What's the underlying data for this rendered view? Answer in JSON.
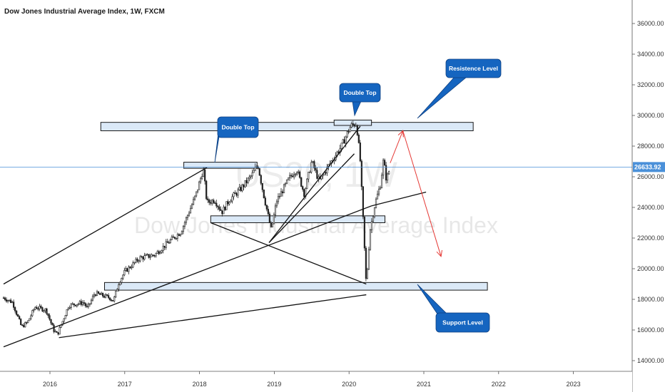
{
  "header": {
    "title": "Dow Jones Industrial Average Index, 1W, FXCM"
  },
  "watermark": {
    "symbol": "US30, 1W",
    "name": "Dow Jones Industrial Average Index"
  },
  "current_price": {
    "label": "26633.92",
    "value": 26633.92
  },
  "colors": {
    "axis_bg": "#ffffff",
    "price_line": "#4a90d9",
    "zone_fill": "#dbe9f7",
    "callout": "#1565c0",
    "projection": "#e53935"
  },
  "annotations": {
    "resistance": "Resistence Level",
    "support": "Support Level",
    "double_top_1": "Double Top",
    "double_top_2": "Double Top"
  },
  "chart_data": {
    "type": "candlestick",
    "title": "Dow Jones Industrial Average Index, 1W, FXCM",
    "xlabel": "",
    "ylabel": "",
    "x_ticks": [
      "2016",
      "2017",
      "2018",
      "2019",
      "2020",
      "2021",
      "2022",
      "2023"
    ],
    "y_ticks": [
      "36000.00",
      "34000.00",
      "32000.00",
      "30000.00",
      "28000.00",
      "26000.00",
      "24000.00",
      "22000.00",
      "20000.00",
      "18000.00",
      "16000.00",
      "14000.00"
    ],
    "ylim": [
      13500,
      37200
    ],
    "xlim": [
      2015.38,
      2023.75
    ],
    "grid": false,
    "price_path": [
      [
        2015.38,
        18100
      ],
      [
        2015.5,
        17800
      ],
      [
        2015.62,
        16200
      ],
      [
        2015.7,
        16500
      ],
      [
        2015.8,
        17500
      ],
      [
        2015.95,
        17300
      ],
      [
        2016.05,
        16000
      ],
      [
        2016.1,
        15700
      ],
      [
        2016.25,
        17600
      ],
      [
        2016.45,
        17800
      ],
      [
        2016.5,
        17400
      ],
      [
        2016.6,
        18400
      ],
      [
        2016.8,
        18100
      ],
      [
        2016.85,
        17900
      ],
      [
        2016.92,
        19100
      ],
      [
        2017.0,
        19800
      ],
      [
        2017.2,
        20700
      ],
      [
        2017.4,
        20900
      ],
      [
        2017.6,
        21800
      ],
      [
        2017.75,
        22400
      ],
      [
        2017.95,
        24800
      ],
      [
        2018.05,
        26500
      ],
      [
        2018.1,
        24300
      ],
      [
        2018.2,
        24500
      ],
      [
        2018.3,
        23700
      ],
      [
        2018.4,
        24500
      ],
      [
        2018.55,
        25200
      ],
      [
        2018.7,
        26100
      ],
      [
        2018.78,
        26800
      ],
      [
        2018.85,
        25000
      ],
      [
        2018.96,
        22500
      ],
      [
        2019.03,
        24400
      ],
      [
        2019.2,
        25900
      ],
      [
        2019.3,
        26500
      ],
      [
        2019.4,
        24900
      ],
      [
        2019.5,
        27000
      ],
      [
        2019.6,
        25700
      ],
      [
        2019.75,
        26900
      ],
      [
        2019.9,
        28000
      ],
      [
        2020.02,
        29300
      ],
      [
        2020.1,
        29500
      ],
      [
        2020.15,
        27000
      ],
      [
        2020.2,
        22000
      ],
      [
        2020.23,
        18900
      ],
      [
        2020.28,
        22500
      ],
      [
        2020.35,
        24300
      ],
      [
        2020.42,
        25500
      ],
      [
        2020.46,
        27100
      ],
      [
        2020.5,
        25800
      ],
      [
        2020.55,
        26633.92
      ]
    ],
    "zones": [
      {
        "label": "Resistence Level",
        "from": 2016.68,
        "to": 2021.66,
        "low": 29000,
        "high": 29550
      },
      {
        "label": "Double Top",
        "from": 2017.79,
        "to": 2018.77,
        "low": 26550,
        "high": 26950
      },
      {
        "label": "Double Top",
        "from": 2019.8,
        "to": 2020.3,
        "low": 29350,
        "high": 29700
      },
      {
        "label": "",
        "from": 2018.15,
        "to": 2020.48,
        "low": 23000,
        "high": 23450
      },
      {
        "label": "Support Level",
        "from": 2016.73,
        "to": 2021.85,
        "low": 18600,
        "high": 19100
      }
    ],
    "trendlines": [
      [
        [
          2015.38,
          19000
        ],
        [
          2018.1,
          26600
        ]
      ],
      [
        [
          2015.38,
          14900
        ],
        [
          2020.3,
          24100
        ]
      ],
      [
        [
          2020.3,
          24100
        ],
        [
          2021.03,
          25000
        ]
      ],
      [
        [
          2016.12,
          15500
        ],
        [
          2020.23,
          18300
        ]
      ],
      [
        [
          2018.15,
          23000
        ],
        [
          2020.23,
          19000
        ]
      ],
      [
        [
          2018.93,
          21700
        ],
        [
          2020.15,
          29300
        ]
      ],
      [
        [
          2018.93,
          21700
        ],
        [
          2020.07,
          27500
        ]
      ]
    ],
    "projection": [
      [
        2020.55,
        26900
      ],
      [
        2020.72,
        29000
      ],
      [
        2021.23,
        20800
      ]
    ],
    "last_price": 26633.92
  }
}
